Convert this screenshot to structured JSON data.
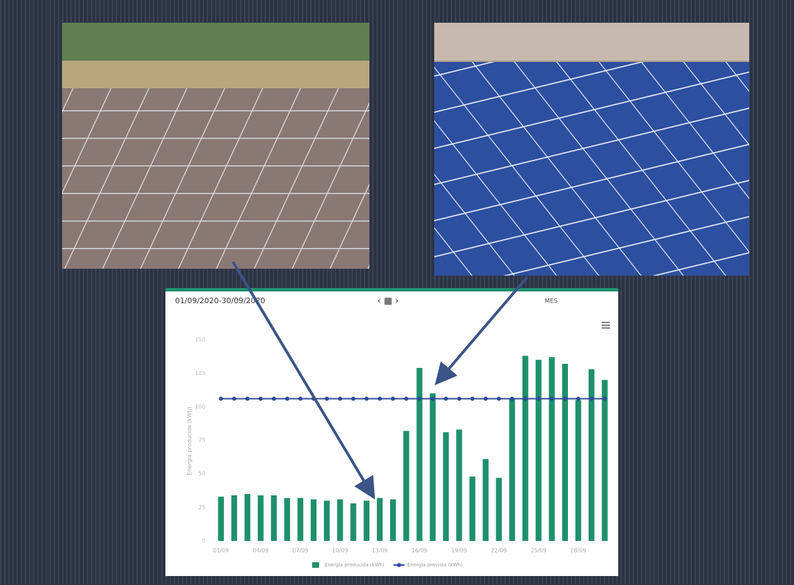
{
  "header": {
    "date_range": "01/09/2020-30/09/2020",
    "period": "MES"
  },
  "chart_data": {
    "type": "bar",
    "y_label": "Energía producida (kWh)",
    "categories": [
      "01/09",
      null,
      null,
      "04/09",
      null,
      null,
      "07/09",
      null,
      null,
      "10/09",
      null,
      null,
      "13/09",
      null,
      null,
      "16/09",
      null,
      null,
      "19/09",
      null,
      null,
      "22/09",
      null,
      null,
      "25/09",
      null,
      null,
      "28/09",
      null,
      null
    ],
    "series": [
      {
        "name": "Energía producida (kWh)",
        "color": "#1f8f6c",
        "values": [
          33,
          34,
          35,
          34,
          34,
          32,
          32,
          31,
          30,
          31,
          28,
          30,
          32,
          31,
          82,
          129,
          110,
          81,
          83,
          48,
          61,
          47,
          106,
          138,
          135,
          137,
          132,
          105,
          128,
          120
        ]
      },
      {
        "name": "Energía prevista (kWh)",
        "type": "line",
        "color": "#2f4b9b",
        "values": [
          106,
          106,
          106,
          106,
          106,
          106,
          106,
          106,
          106,
          106,
          106,
          106,
          106,
          106,
          106,
          106,
          106,
          106,
          106,
          106,
          106,
          106,
          106,
          106,
          106,
          106,
          106,
          106,
          106,
          106
        ]
      }
    ],
    "ylim": [
      0,
      150
    ],
    "yticks": [
      0,
      25,
      50,
      75,
      100,
      125,
      150
    ],
    "grid": false
  }
}
